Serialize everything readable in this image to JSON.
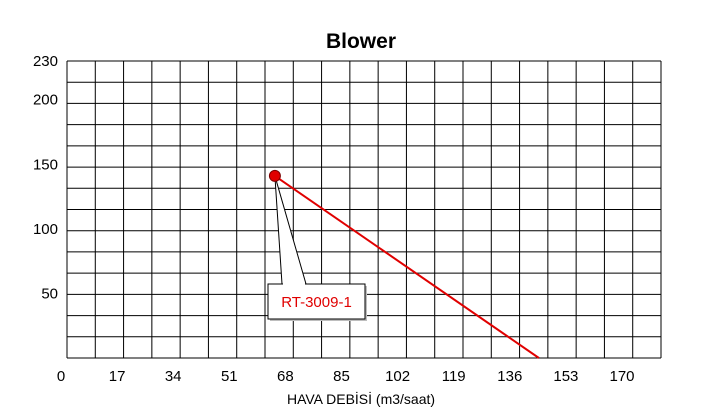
{
  "chart_data": {
    "type": "line",
    "title": "Blower",
    "xlabel": "HAVA DEBİSİ (m3/saat)",
    "ylabel": "",
    "xlim": [
      0,
      180
    ],
    "ylim": [
      0,
      230
    ],
    "x_ticks": [
      "0",
      "17",
      "34",
      "51",
      "68",
      "85",
      "102",
      "119",
      "136",
      "153",
      "170"
    ],
    "y_ticks": [
      "230",
      "200",
      "150",
      "100",
      "50"
    ],
    "x_tick_values": [
      0,
      17,
      34,
      51,
      68,
      85,
      102,
      119,
      136,
      153,
      170
    ],
    "y_tick_values": [
      230,
      200,
      150,
      100,
      50
    ],
    "grid": true,
    "series": [
      {
        "color": "#e00000",
        "x": [
          63,
          143
        ],
        "y": [
          141,
          0
        ]
      }
    ],
    "marker": {
      "x": 63,
      "y": 141,
      "color": "#e00000"
    },
    "annotation": {
      "text": "RT-3009-1",
      "color": "#e00000"
    }
  }
}
